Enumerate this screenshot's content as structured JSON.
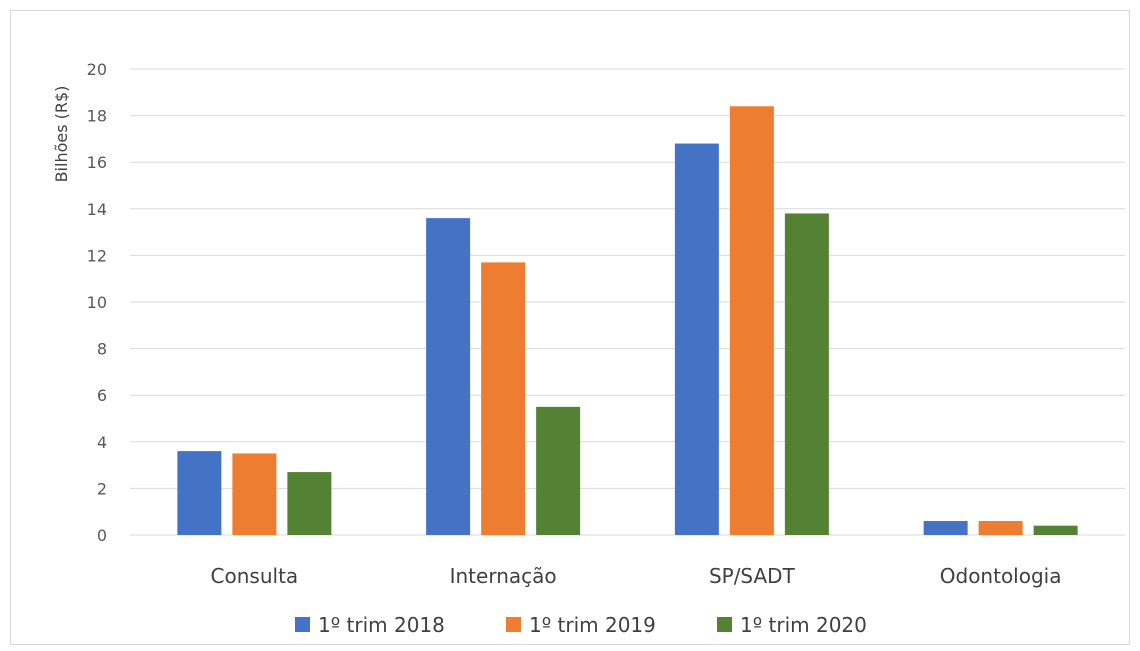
{
  "chart_data": {
    "type": "bar",
    "title": "",
    "xlabel": "",
    "ylabel": "Bilhões (R$)",
    "ylim": [
      0,
      20
    ],
    "yticks": [
      0,
      2,
      4,
      6,
      8,
      10,
      12,
      14,
      16,
      18,
      20
    ],
    "grid": true,
    "legend_position": "bottom",
    "categories": [
      "Consulta",
      "Internação",
      "SP/SADT",
      "Odontologia"
    ],
    "series": [
      {
        "name": "1º trim 2018",
        "color": "#4472c4",
        "values": [
          3.6,
          13.6,
          16.8,
          0.6
        ]
      },
      {
        "name": "1º trim 2019",
        "color": "#ed7d31",
        "values": [
          3.5,
          11.7,
          18.4,
          0.6
        ]
      },
      {
        "name": "1º trim 2020",
        "color": "#548235",
        "values": [
          2.7,
          5.5,
          13.8,
          0.4
        ]
      }
    ]
  }
}
